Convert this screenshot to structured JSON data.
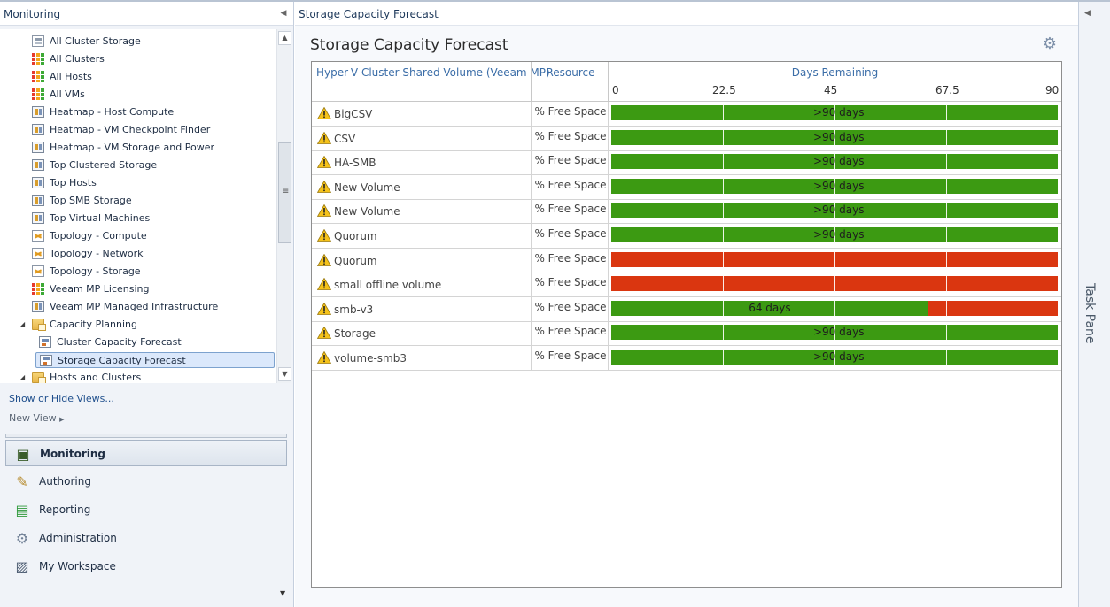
{
  "nav": {
    "title": "Monitoring",
    "tree": [
      {
        "label": "All Cluster Storage",
        "icon": "state-view-icon",
        "level": 1
      },
      {
        "label": "All Clusters",
        "icon": "grid-state-icon",
        "level": 1
      },
      {
        "label": "All Hosts",
        "icon": "grid-state-icon",
        "level": 1
      },
      {
        "label": "All VMs",
        "icon": "grid-state-icon",
        "level": 1
      },
      {
        "label": "Heatmap - Host Compute",
        "icon": "dashboard-view-icon",
        "level": 1
      },
      {
        "label": "Heatmap - VM Checkpoint Finder",
        "icon": "dashboard-view-icon",
        "level": 1
      },
      {
        "label": "Heatmap - VM Storage and Power",
        "icon": "dashboard-view-icon",
        "level": 1
      },
      {
        "label": "Top Clustered Storage",
        "icon": "dashboard-view-icon",
        "level": 1
      },
      {
        "label": "Top Hosts",
        "icon": "dashboard-view-icon",
        "level": 1
      },
      {
        "label": "Top SMB Storage",
        "icon": "dashboard-view-icon",
        "level": 1
      },
      {
        "label": "Top Virtual Machines",
        "icon": "dashboard-view-icon",
        "level": 1
      },
      {
        "label": "Topology - Compute",
        "icon": "topology-view-icon",
        "level": 1
      },
      {
        "label": "Topology - Network",
        "icon": "topology-view-icon",
        "level": 1
      },
      {
        "label": "Topology - Storage",
        "icon": "topology-view-icon",
        "level": 1
      },
      {
        "label": "Veeam MP Licensing",
        "icon": "grid-state-icon",
        "level": 1
      },
      {
        "label": "Veeam MP Managed Infrastructure",
        "icon": "dashboard-view-icon",
        "level": 1
      },
      {
        "label": "Capacity Planning",
        "icon": "folder-icon",
        "level": 0,
        "expanded": true
      },
      {
        "label": "Cluster Capacity Forecast",
        "icon": "capacity-view-icon",
        "level": 2
      },
      {
        "label": "Storage Capacity Forecast",
        "icon": "capacity-view-icon",
        "level": 2,
        "selected": true
      },
      {
        "label": "Hosts and Clusters",
        "icon": "folder-icon",
        "level": 0,
        "expanded": true
      }
    ],
    "show_hide": "Show or Hide Views...",
    "new_view": "New View",
    "workspaces": [
      {
        "label": "Monitoring",
        "icon": "monitoring-icon",
        "active": true
      },
      {
        "label": "Authoring",
        "icon": "authoring-icon"
      },
      {
        "label": "Reporting",
        "icon": "reporting-icon"
      },
      {
        "label": "Administration",
        "icon": "administration-icon"
      },
      {
        "label": "My Workspace",
        "icon": "my-workspace-icon"
      }
    ]
  },
  "main": {
    "breadcrumb": "Storage Capacity Forecast",
    "title": "Storage Capacity Forecast"
  },
  "chart_data": {
    "type": "table",
    "columns": [
      "Hyper-V Cluster Shared Volume (Veeam MP)",
      "Resource",
      "Days Remaining"
    ],
    "xlim": [
      0,
      90
    ],
    "ticks": [
      "0",
      "22.5",
      "45",
      "67.5",
      "90"
    ],
    "colors": {
      "ok": "#3c9a12",
      "critical": "#da3610"
    },
    "rows": [
      {
        "name": "BigCSV",
        "resource": "% Free Space",
        "days": 90,
        "label": ">90 days"
      },
      {
        "name": "CSV",
        "resource": "% Free Space",
        "days": 90,
        "label": ">90 days"
      },
      {
        "name": "HA-SMB",
        "resource": "% Free Space",
        "days": 90,
        "label": ">90 days"
      },
      {
        "name": "New Volume",
        "resource": "% Free Space",
        "days": 90,
        "label": ">90 days"
      },
      {
        "name": "New Volume",
        "resource": "% Free Space",
        "days": 90,
        "label": ">90 days"
      },
      {
        "name": "Quorum",
        "resource": "% Free Space",
        "days": 90,
        "label": ">90 days"
      },
      {
        "name": "Quorum",
        "resource": "% Free Space",
        "days": 0,
        "label": ""
      },
      {
        "name": "small offline volume",
        "resource": "% Free Space",
        "days": 0,
        "label": ""
      },
      {
        "name": "smb-v3",
        "resource": "% Free Space",
        "days": 64,
        "label": "64 days"
      },
      {
        "name": "Storage",
        "resource": "% Free Space",
        "days": 90,
        "label": ">90 days"
      },
      {
        "name": "volume-smb3",
        "resource": "% Free Space",
        "days": 90,
        "label": ">90 days"
      }
    ]
  },
  "taskpane": {
    "label": "Task Pane"
  }
}
